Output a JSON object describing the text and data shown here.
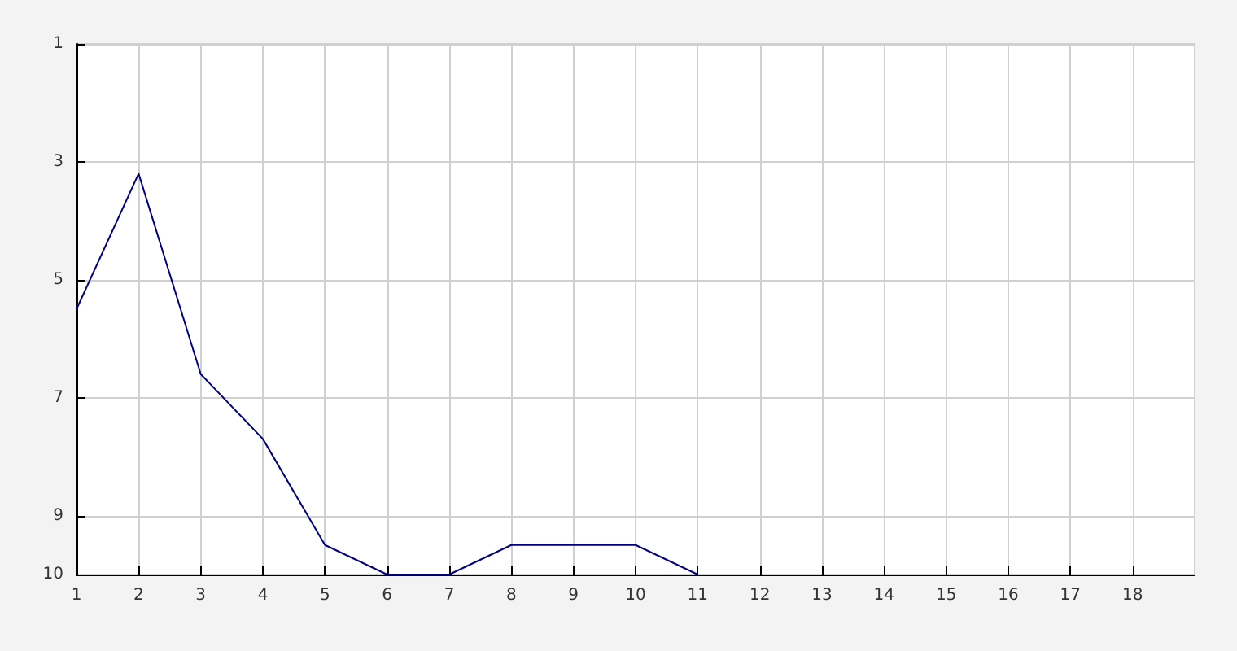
{
  "chart_data": {
    "type": "line",
    "x": [
      1,
      2,
      3,
      4,
      5,
      6,
      7,
      8,
      9,
      10,
      11
    ],
    "series": [
      {
        "color": "#000080",
        "values": [
          5.5,
          3.2,
          6.6,
          7.7,
          9.5,
          10,
          10,
          9.5,
          9.5,
          9.5,
          10
        ]
      }
    ],
    "xlim": [
      1,
      19
    ],
    "xticks": [
      1,
      2,
      3,
      4,
      5,
      6,
      7,
      8,
      9,
      10,
      11,
      12,
      13,
      14,
      15,
      16,
      17,
      18
    ],
    "ylim": [
      10,
      1
    ],
    "yticks": [
      1,
      3,
      5,
      7,
      9,
      10
    ],
    "grid": true,
    "marker": "none",
    "line_style": "solid"
  }
}
